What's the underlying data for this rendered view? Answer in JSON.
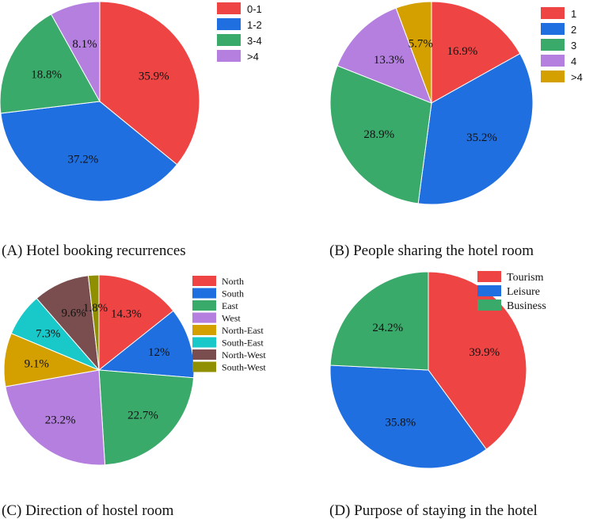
{
  "chart_data": [
    {
      "type": "pie",
      "caption": "(A) Hotel booking recurrences",
      "categories": [
        "0-1",
        "1-2",
        "3-4",
        ">4"
      ],
      "values": [
        35.9,
        37.2,
        18.8,
        8.1
      ],
      "labels": [
        "35.9%",
        "37.2%",
        "18.8%",
        "8.1%"
      ],
      "colors": [
        "#ef4444",
        "#1f6fe0",
        "#3aaa6a",
        "#b57fe0"
      ],
      "legend": "top-right"
    },
    {
      "type": "pie",
      "caption": "(B) People sharing the hotel room",
      "categories": [
        "1",
        "2",
        "3",
        "4",
        ">4"
      ],
      "values": [
        16.9,
        35.2,
        28.9,
        13.3,
        5.7
      ],
      "labels": [
        "16.9%",
        "35.2%",
        "28.9%",
        "13.3%",
        "5.7%"
      ],
      "colors": [
        "#ef4444",
        "#1f6fe0",
        "#3aaa6a",
        "#b57fe0",
        "#d4a000"
      ],
      "legend": "top-right"
    },
    {
      "type": "pie",
      "caption": "(C) Direction of hostel room",
      "categories": [
        "North",
        "South",
        "East",
        "West",
        "North-East",
        "South-East",
        "North-West",
        "South-West"
      ],
      "values": [
        14.3,
        12,
        22.7,
        23.2,
        9.1,
        7.3,
        9.6,
        1.8
      ],
      "labels": [
        "14.3%",
        "12%",
        "22.7%",
        "23.2%",
        "9.1%",
        "7.3%",
        "9.6%",
        "1.8%"
      ],
      "colors": [
        "#ef4444",
        "#1f6fe0",
        "#3aaa6a",
        "#b57fe0",
        "#d4a000",
        "#19c8c8",
        "#7a4e4e",
        "#8f8f00"
      ],
      "legend": "top-right"
    },
    {
      "type": "pie",
      "caption": "(D) Purpose of staying in the hotel",
      "categories": [
        "Tourism",
        "Leisure",
        "Business"
      ],
      "values": [
        39.9,
        35.8,
        24.2
      ],
      "labels": [
        "39.9%",
        "35.8%",
        "24.2%"
      ],
      "colors": [
        "#ef4444",
        "#1f6fe0",
        "#3aaa6a"
      ],
      "legend": "top-right"
    }
  ]
}
